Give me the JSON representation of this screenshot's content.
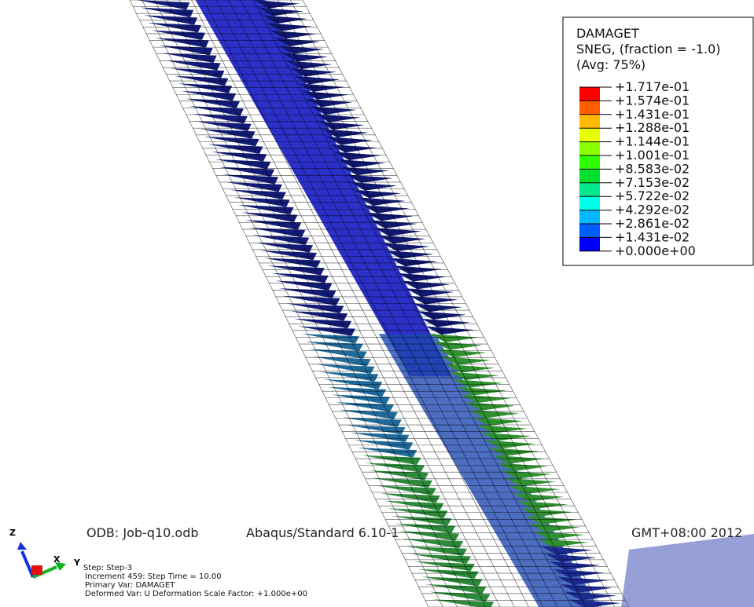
{
  "legend": {
    "title_lines": [
      "DAMAGET",
      "SNEG, (fraction = -1.0)",
      "(Avg: 75%)"
    ],
    "labels": [
      "+1.717e-01",
      "+1.574e-01",
      "+1.431e-01",
      "+1.288e-01",
      "+1.144e-01",
      "+1.001e-01",
      "+8.583e-02",
      "+7.153e-02",
      "+5.722e-02",
      "+4.292e-02",
      "+2.861e-02",
      "+1.431e-02",
      "+0.000e+00"
    ],
    "colors": [
      "#ff0000",
      "#ff5d00",
      "#ffb900",
      "#e8ff00",
      "#8bff00",
      "#2eff00",
      "#00e02e",
      "#00e88b",
      "#00ffe8",
      "#00b9ff",
      "#005dff",
      "#0000ff"
    ]
  },
  "footer": {
    "odb": "ODB: Job-q10.odb",
    "solver": "Abaqus/Standard 6.10-1",
    "date": "GMT+08:00 2012",
    "step_lines": [
      "Step: Step-3",
      "Increment    459: Step Time =    10.00",
      "Primary Var: DAMAGET",
      "Deformed Var: U   Deformation Scale Factor: +1.000e+00"
    ]
  },
  "triad": {
    "z": "Z",
    "x": "X",
    "y": "Y"
  }
}
